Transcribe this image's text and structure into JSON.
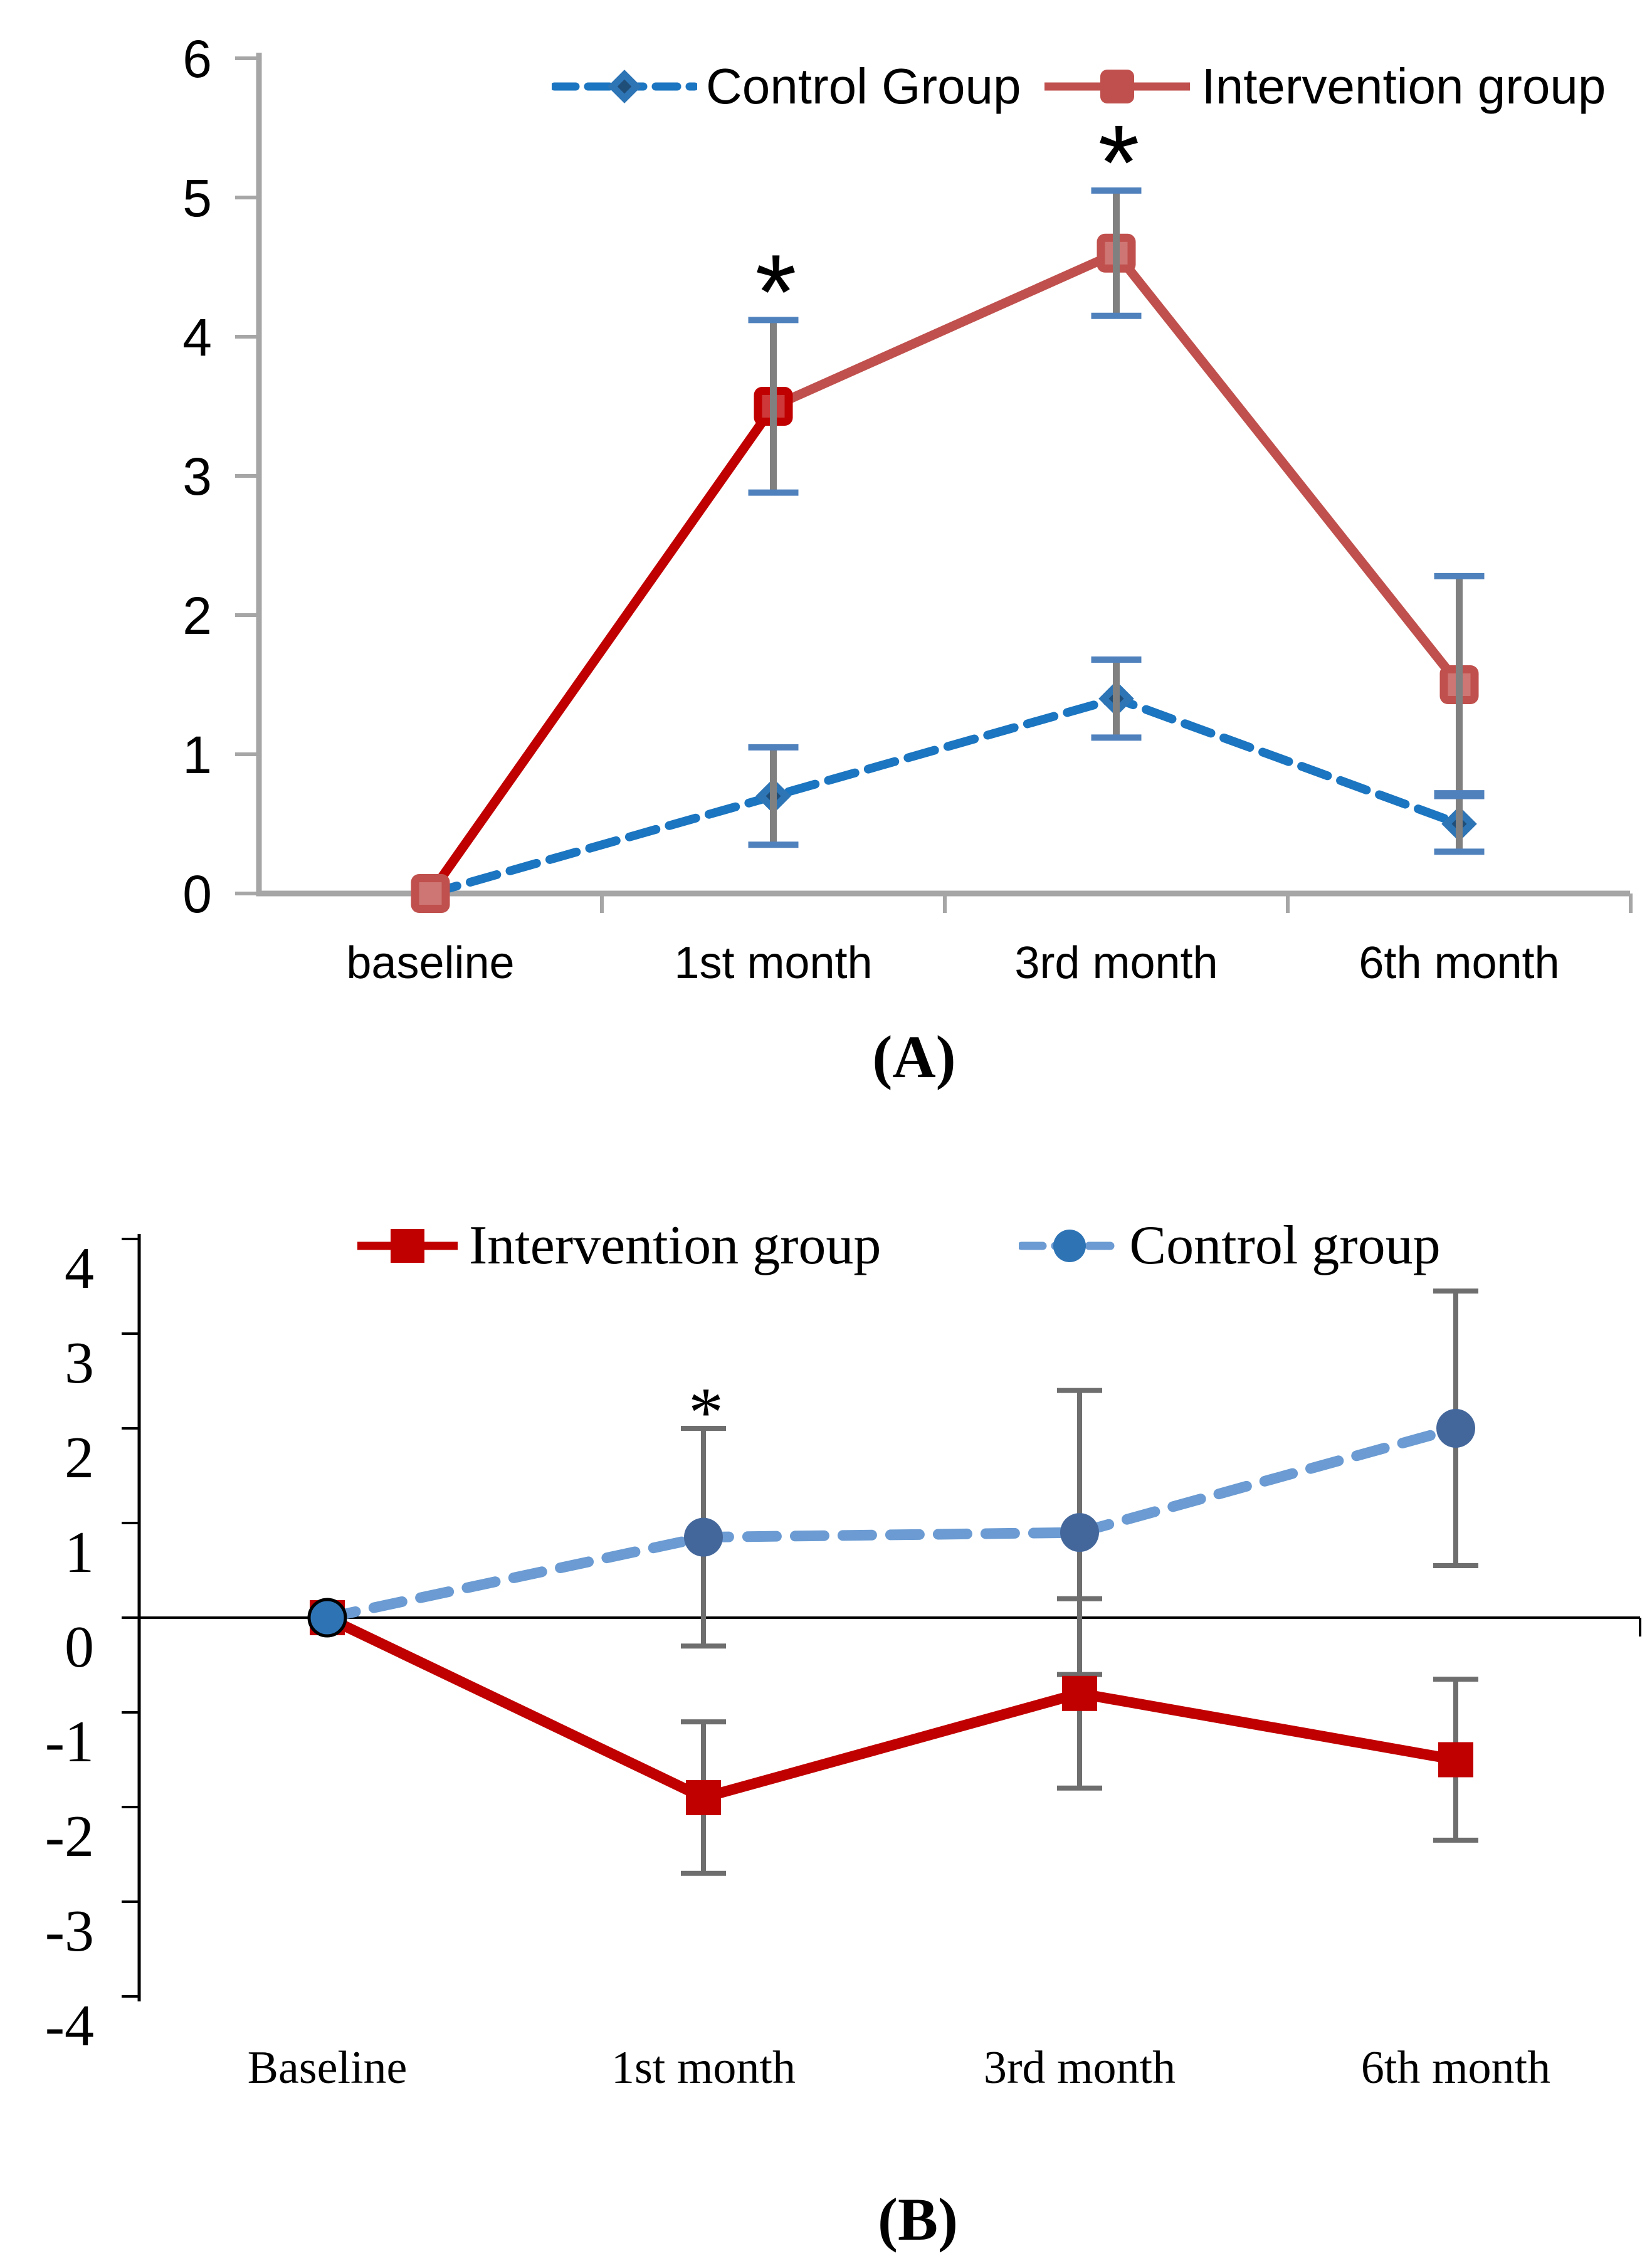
{
  "chart_data": [
    {
      "id": "panel-A",
      "type": "line",
      "caption": "(A)",
      "categories": [
        "baseline",
        "1st month",
        "3rd month",
        "6th month"
      ],
      "ylim": [
        0,
        6
      ],
      "yticks": [
        0,
        1,
        2,
        3,
        4,
        5,
        6
      ],
      "ytick_labels": [
        "0",
        "1",
        "2",
        "3",
        "4",
        "5",
        "6"
      ],
      "xlabel": "",
      "ylabel": "",
      "grid": false,
      "legend_position": "top-center",
      "axis_color": "#A6A6A6",
      "error_bar_color": "#808080",
      "error_cap_color": "#4F81BD",
      "annotation_symbol": "*",
      "annotations": [
        {
          "category_index": 1,
          "series_index": 1
        },
        {
          "category_index": 2,
          "series_index": 1
        }
      ],
      "series": [
        {
          "name": "Control Group",
          "style": "dashed",
          "marker": "diamond",
          "color": "#1B75C0",
          "marker_color": "#2E75B6",
          "marker_inner_color": "#1F4E79",
          "values": [
            0,
            0.7,
            1.4,
            0.5
          ],
          "errors": [
            0,
            0.35,
            0.28,
            0.2
          ]
        },
        {
          "name": "Intervention group",
          "style": "solid",
          "marker": "square",
          "color": "#C0504D",
          "segment_colors": [
            "#C00000",
            "#C0504D",
            "#C0504D"
          ],
          "marker_color": "#C0504D",
          "marker_colors": [
            "#C0504D",
            "#C00000",
            "#C0504D",
            "#C0504D"
          ],
          "values": [
            0,
            3.5,
            4.6,
            1.5
          ],
          "errors": [
            0,
            0.62,
            0.45,
            0.78
          ]
        }
      ]
    },
    {
      "id": "panel-B",
      "type": "line",
      "caption": "(B)",
      "categories": [
        "Baseline",
        "1st month",
        "3rd month",
        "6th month"
      ],
      "ylim": [
        -4,
        4
      ],
      "yticks": [
        4,
        3,
        2,
        1,
        0,
        -1,
        -2,
        -3,
        -4
      ],
      "ytick_labels": [
        "4",
        "3",
        "2",
        "1",
        "0",
        "-1",
        "-2",
        "-3",
        "-4"
      ],
      "xlabel": "",
      "ylabel": "",
      "grid": false,
      "legend_position": "top-center",
      "axis_color": "#000000",
      "error_bar_color": "#6E6E6E",
      "error_cap_color": "#6E6E6E",
      "annotation_symbol": "*",
      "annotations": [
        {
          "category_index": 1,
          "series_index": 1
        }
      ],
      "series": [
        {
          "name": "Intervention group",
          "style": "solid",
          "marker": "square",
          "color": "#C00000",
          "marker_color": "#C00000",
          "values": [
            0,
            -1.9,
            -0.8,
            -1.5
          ],
          "errors": [
            0,
            0.8,
            1.0,
            0.85
          ]
        },
        {
          "name": "Control group",
          "style": "dashed",
          "marker": "circle",
          "color": "#6B9BD2",
          "marker_color": "#44679B",
          "marker_colors": [
            "#2E74B5",
            "#44679B",
            "#44679B",
            "#44679B"
          ],
          "marker_strokes": [
            "#000000",
            null,
            null,
            null
          ],
          "values": [
            0,
            0.85,
            0.9,
            2.0
          ],
          "errors": [
            0,
            1.15,
            1.5,
            1.45
          ]
        }
      ]
    }
  ]
}
